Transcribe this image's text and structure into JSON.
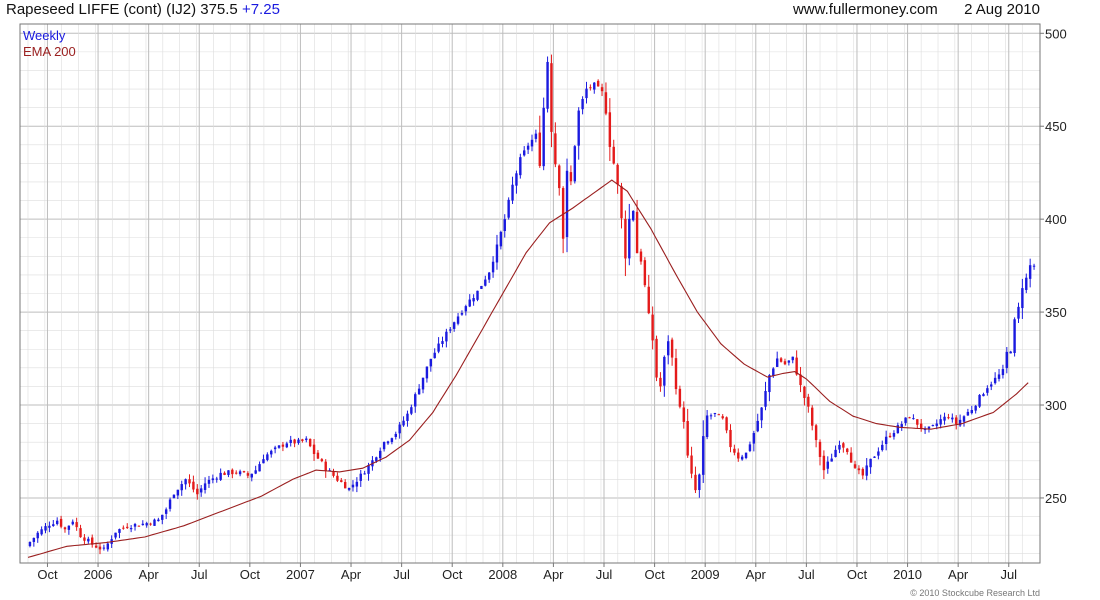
{
  "header": {
    "title": "Rapeseed LIFFE (cont) (IJ2) 375.5",
    "change": "+7.25",
    "site": "www.fullermoney.com",
    "date": "2 Aug 2010"
  },
  "credit": "© 2010 Stockcube Research Ltd",
  "colors": {
    "up": "#1a1adf",
    "down": "#e41a1a",
    "ema": "#9a1f1f",
    "grid": "#dddddd",
    "frame": "#777777"
  },
  "chart_data": {
    "type": "candlestick",
    "period": "Weekly",
    "y_axis": {
      "side": "right",
      "ylim": [
        215,
        505
      ],
      "ticks": [
        250,
        300,
        350,
        400,
        450,
        500
      ]
    },
    "x_axis": {
      "ticks": [
        {
          "label": "Oct",
          "week": 5
        },
        {
          "label": "2006",
          "week": 18
        },
        {
          "label": "Apr",
          "week": 31
        },
        {
          "label": "Jul",
          "week": 44
        },
        {
          "label": "Oct",
          "week": 57
        },
        {
          "label": "2007",
          "week": 70
        },
        {
          "label": "Apr",
          "week": 83
        },
        {
          "label": "Jul",
          "week": 96
        },
        {
          "label": "Oct",
          "week": 109
        },
        {
          "label": "2008",
          "week": 122
        },
        {
          "label": "Apr",
          "week": 135
        },
        {
          "label": "Jul",
          "week": 148
        },
        {
          "label": "Oct",
          "week": 161
        },
        {
          "label": "2009",
          "week": 174
        },
        {
          "label": "Apr",
          "week": 187
        },
        {
          "label": "Jul",
          "week": 200
        },
        {
          "label": "Oct",
          "week": 213
        },
        {
          "label": "2010",
          "week": 226
        },
        {
          "label": "Apr",
          "week": 239
        },
        {
          "label": "Jul",
          "week": 252
        }
      ]
    },
    "legend": [
      {
        "label": "Weekly",
        "color": "#1a1adf"
      },
      {
        "label": "EMA 200",
        "color": "#9a1f1f"
      }
    ],
    "price_path": [
      [
        0,
        224
      ],
      [
        3,
        231
      ],
      [
        6,
        236
      ],
      [
        8,
        238
      ],
      [
        10,
        233
      ],
      [
        12,
        238
      ],
      [
        14,
        230
      ],
      [
        17,
        225
      ],
      [
        20,
        222
      ],
      [
        23,
        232
      ],
      [
        26,
        235
      ],
      [
        30,
        236
      ],
      [
        34,
        238
      ],
      [
        36,
        244
      ],
      [
        38,
        253
      ],
      [
        41,
        260
      ],
      [
        44,
        252
      ],
      [
        46,
        258
      ],
      [
        50,
        263
      ],
      [
        54,
        264
      ],
      [
        57,
        262
      ],
      [
        59,
        265
      ],
      [
        61,
        272
      ],
      [
        64,
        276
      ],
      [
        67,
        280
      ],
      [
        70,
        280
      ],
      [
        72,
        281
      ],
      [
        74,
        274
      ],
      [
        77,
        266
      ],
      [
        80,
        260
      ],
      [
        83,
        255
      ],
      [
        86,
        262
      ],
      [
        89,
        270
      ],
      [
        92,
        280
      ],
      [
        95,
        285
      ],
      [
        98,
        295
      ],
      [
        101,
        310
      ],
      [
        104,
        325
      ],
      [
        107,
        335
      ],
      [
        110,
        345
      ],
      [
        113,
        354
      ],
      [
        116,
        361
      ],
      [
        119,
        372
      ],
      [
        121,
        385
      ],
      [
        123,
        400
      ],
      [
        125,
        418
      ],
      [
        127,
        432
      ],
      [
        129,
        440
      ],
      [
        131,
        445
      ],
      [
        132,
        430
      ],
      [
        133,
        460
      ],
      [
        134,
        485
      ],
      [
        135,
        448
      ],
      [
        136,
        430
      ],
      [
        137,
        418
      ],
      [
        138,
        390
      ],
      [
        139,
        425
      ],
      [
        140,
        420
      ],
      [
        141,
        440
      ],
      [
        142,
        458
      ],
      [
        144,
        470
      ],
      [
        146,
        472
      ],
      [
        148,
        468
      ],
      [
        149,
        458
      ],
      [
        150,
        440
      ],
      [
        151,
        430
      ],
      [
        152,
        418
      ],
      [
        153,
        400
      ],
      [
        154,
        380
      ],
      [
        155,
        400
      ],
      [
        156,
        405
      ],
      [
        157,
        382
      ],
      [
        158,
        378
      ],
      [
        159,
        364
      ],
      [
        160,
        348
      ],
      [
        161,
        335
      ],
      [
        162,
        315
      ],
      [
        163,
        310
      ],
      [
        164,
        325
      ],
      [
        165,
        335
      ],
      [
        166,
        325
      ],
      [
        167,
        310
      ],
      [
        168,
        298
      ],
      [
        169,
        292
      ],
      [
        170,
        272
      ],
      [
        171,
        262
      ],
      [
        172,
        254
      ],
      [
        173,
        262
      ],
      [
        174,
        282
      ],
      [
        175,
        294
      ],
      [
        177,
        295
      ],
      [
        179,
        292
      ],
      [
        181,
        278
      ],
      [
        183,
        272
      ],
      [
        185,
        274
      ],
      [
        187,
        285
      ],
      [
        189,
        298
      ],
      [
        191,
        316
      ],
      [
        193,
        325
      ],
      [
        195,
        322
      ],
      [
        197,
        325
      ],
      [
        199,
        310
      ],
      [
        201,
        298
      ],
      [
        203,
        280
      ],
      [
        205,
        265
      ],
      [
        207,
        272
      ],
      [
        209,
        280
      ],
      [
        211,
        276
      ],
      [
        213,
        265
      ],
      [
        215,
        262
      ],
      [
        217,
        270
      ],
      [
        219,
        276
      ],
      [
        221,
        282
      ],
      [
        223,
        286
      ],
      [
        225,
        290
      ],
      [
        227,
        294
      ],
      [
        229,
        290
      ],
      [
        231,
        286
      ],
      [
        233,
        288
      ],
      [
        235,
        292
      ],
      [
        237,
        294
      ],
      [
        239,
        290
      ],
      [
        241,
        294
      ],
      [
        243,
        298
      ],
      [
        245,
        304
      ],
      [
        247,
        310
      ],
      [
        249,
        314
      ],
      [
        251,
        318
      ],
      [
        252,
        328
      ],
      [
        253,
        330
      ],
      [
        254,
        345
      ],
      [
        255,
        352
      ],
      [
        256,
        364
      ],
      [
        257,
        368
      ],
      [
        258,
        375
      ]
    ],
    "ema200_path": [
      [
        0,
        218
      ],
      [
        10,
        224
      ],
      [
        20,
        226
      ],
      [
        30,
        229
      ],
      [
        40,
        235
      ],
      [
        50,
        243
      ],
      [
        60,
        251
      ],
      [
        68,
        260
      ],
      [
        74,
        265
      ],
      [
        80,
        264
      ],
      [
        86,
        266
      ],
      [
        92,
        272
      ],
      [
        98,
        281
      ],
      [
        104,
        296
      ],
      [
        110,
        316
      ],
      [
        116,
        338
      ],
      [
        122,
        360
      ],
      [
        128,
        382
      ],
      [
        134,
        398
      ],
      [
        140,
        406
      ],
      [
        146,
        415
      ],
      [
        150,
        421
      ],
      [
        154,
        415
      ],
      [
        160,
        395
      ],
      [
        166,
        372
      ],
      [
        172,
        350
      ],
      [
        178,
        333
      ],
      [
        184,
        322
      ],
      [
        190,
        315
      ],
      [
        194,
        317
      ],
      [
        197,
        318
      ],
      [
        200,
        314
      ],
      [
        206,
        302
      ],
      [
        212,
        294
      ],
      [
        218,
        290
      ],
      [
        224,
        288
      ],
      [
        232,
        287
      ],
      [
        240,
        290
      ],
      [
        248,
        296
      ],
      [
        254,
        306
      ],
      [
        257,
        312
      ]
    ]
  }
}
